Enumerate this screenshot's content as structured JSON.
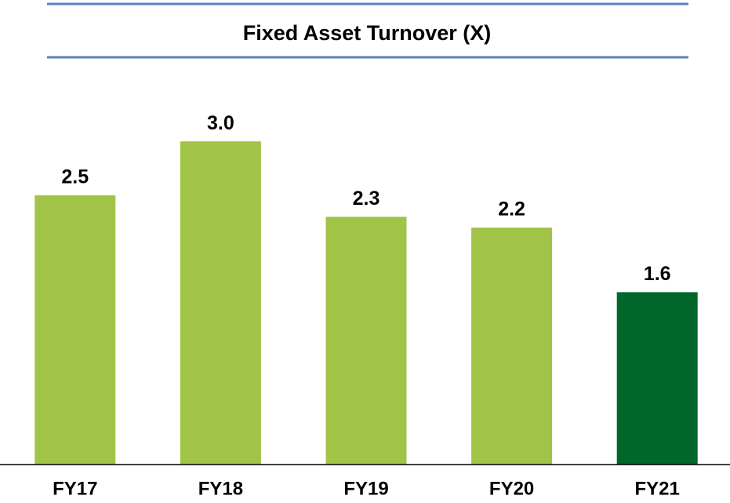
{
  "chart_data": {
    "type": "bar",
    "title": "Fixed Asset Turnover (X)",
    "categories": [
      "FY17",
      "FY18",
      "FY19",
      "FY20",
      "FY21"
    ],
    "values": [
      2.5,
      3.0,
      2.3,
      2.2,
      1.6
    ],
    "value_labels": [
      "2.5",
      "3.0",
      "2.3",
      "2.2",
      "1.6"
    ],
    "colors": [
      "#a1c348",
      "#a1c348",
      "#a1c348",
      "#a1c348",
      "#006629"
    ],
    "ylim": [
      0,
      3.3
    ]
  }
}
